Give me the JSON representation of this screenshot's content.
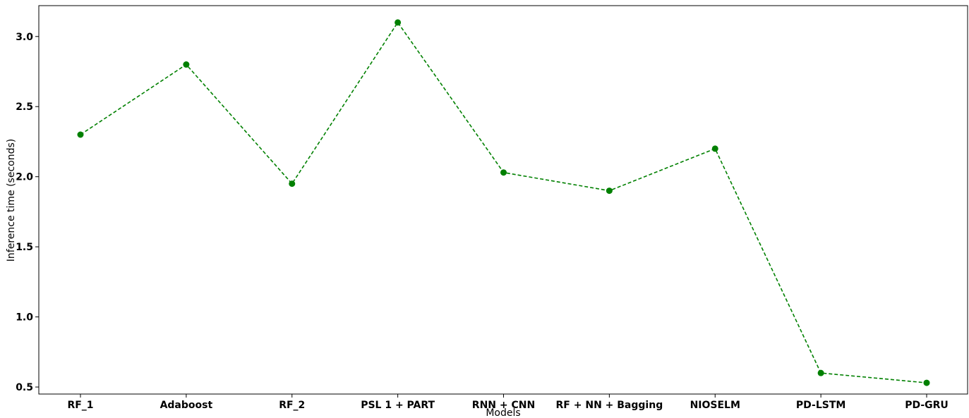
{
  "chart_data": {
    "type": "line",
    "title": "",
    "xlabel": "Models",
    "ylabel": "Inference time (seconds)",
    "categories": [
      "RF_1",
      "Adaboost",
      "RF_2",
      "PSL 1 + PART",
      "RNN + CNN",
      "RF + NN + Bagging",
      "NIOSELM",
      "PD-LSTM",
      "PD-GRU"
    ],
    "series": [
      {
        "values": [
          2.3,
          2.8,
          1.95,
          3.1,
          2.03,
          1.9,
          2.2,
          0.6,
          0.53
        ],
        "color": "#008000",
        "line_style": "dashed",
        "marker": "circle"
      }
    ],
    "ylim": [
      0.45,
      3.22
    ],
    "yticks": [
      "0.5",
      "1.0",
      "1.5",
      "2.0",
      "2.5",
      "3.0"
    ],
    "grid": false
  }
}
